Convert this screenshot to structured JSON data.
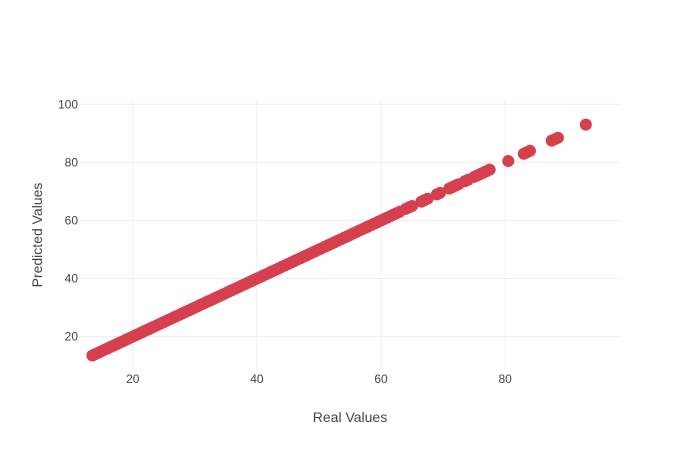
{
  "chart_data": {
    "type": "scatter",
    "title": "",
    "xlabel": "Real Values",
    "ylabel": "Predicted Values",
    "xlim": [
      11.5,
      98.5
    ],
    "ylim": [
      8.5,
      101.5
    ],
    "x_ticks": [
      20,
      40,
      60,
      80
    ],
    "y_ticks": [
      20,
      40,
      60,
      80,
      100
    ],
    "grid": true,
    "marker_color": "#d6404e",
    "series": [
      {
        "x": [
          13.5,
          14.0,
          14.5,
          15.0,
          15.5,
          16.0,
          16.5,
          17.0,
          17.5,
          18.0,
          18.5,
          19.0,
          19.5,
          20.0,
          20.5,
          21.0,
          21.5,
          22.0,
          22.5,
          23.0,
          23.5,
          24.0,
          24.5,
          25.0,
          25.5,
          26.0,
          26.5,
          27.0,
          27.5,
          28.0,
          28.5,
          29.0,
          29.5,
          30.0,
          30.5,
          31.0,
          31.5,
          32.0,
          32.5,
          33.0,
          33.5,
          34.0,
          34.5,
          35.0,
          35.5,
          36.0,
          36.5,
          37.0,
          37.5,
          38.0,
          38.5,
          39.0,
          39.5,
          40.0,
          40.5,
          41.0,
          41.5,
          42.0,
          42.5,
          43.0,
          43.5,
          44.0,
          44.5,
          45.0,
          45.5,
          46.0,
          46.5,
          47.0,
          47.5,
          48.0,
          48.5,
          49.0,
          49.5,
          50.0,
          50.5,
          51.0,
          51.5,
          52.0,
          52.5,
          53.0,
          53.5,
          54.0,
          54.5,
          55.0,
          55.5,
          56.0,
          56.5,
          57.0,
          57.5,
          58.0,
          58.5,
          59.0,
          59.5,
          60.0,
          60.5,
          61.0,
          61.5,
          62.0,
          62.5,
          63.0,
          64.0,
          64.5,
          65.0,
          66.5,
          67.0,
          67.5,
          69.0,
          69.5,
          71.0,
          71.5,
          72.0,
          72.5,
          73.5,
          74.0,
          75.0,
          75.5,
          76.0,
          76.5,
          77.0,
          77.5,
          80.5,
          83.0,
          83.5,
          84.0,
          87.5,
          88.0,
          88.5,
          93.0
        ],
        "y": [
          13.5,
          14.0,
          14.5,
          15.0,
          15.5,
          16.0,
          16.5,
          17.0,
          17.5,
          18.0,
          18.5,
          19.0,
          19.5,
          20.0,
          20.5,
          21.0,
          21.5,
          22.0,
          22.5,
          23.0,
          23.5,
          24.0,
          24.5,
          25.0,
          25.5,
          26.0,
          26.5,
          27.0,
          27.5,
          28.0,
          28.5,
          29.0,
          29.5,
          30.0,
          30.5,
          31.0,
          31.5,
          32.0,
          32.5,
          33.0,
          33.5,
          34.0,
          34.5,
          35.0,
          35.5,
          36.0,
          36.5,
          37.0,
          37.5,
          38.0,
          38.5,
          39.0,
          39.5,
          40.0,
          40.5,
          41.0,
          41.5,
          42.0,
          42.5,
          43.0,
          43.5,
          44.0,
          44.5,
          45.0,
          45.5,
          46.0,
          46.5,
          47.0,
          47.5,
          48.0,
          48.5,
          49.0,
          49.5,
          50.0,
          50.5,
          51.0,
          51.5,
          52.0,
          52.5,
          53.0,
          53.5,
          54.0,
          54.5,
          55.0,
          55.5,
          56.0,
          56.5,
          57.0,
          57.5,
          58.0,
          58.5,
          59.0,
          59.5,
          60.0,
          60.5,
          61.0,
          61.5,
          62.0,
          62.5,
          63.0,
          64.0,
          64.5,
          65.0,
          66.5,
          67.0,
          67.5,
          69.0,
          69.5,
          71.0,
          71.5,
          72.0,
          72.5,
          73.5,
          74.0,
          75.0,
          75.5,
          76.0,
          76.5,
          77.0,
          77.5,
          80.5,
          83.0,
          83.5,
          84.0,
          87.5,
          88.0,
          88.5,
          93.0
        ]
      }
    ]
  }
}
